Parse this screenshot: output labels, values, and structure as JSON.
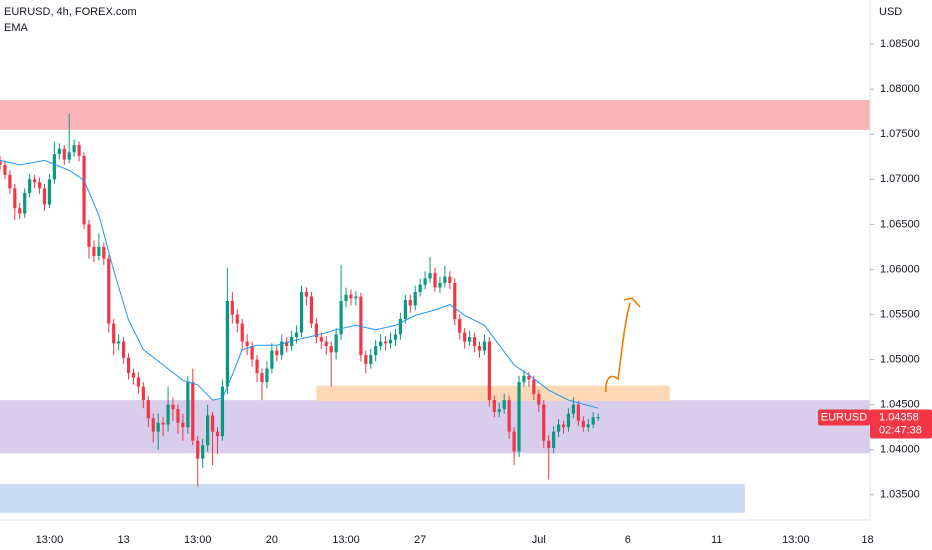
{
  "chart_data": {
    "type": "candlestick",
    "title": "EURUSD, 4h, FOREX.com",
    "indicator": "EMA",
    "currency": "USD",
    "symbol": "EURUSD",
    "last_price": 1.04358,
    "countdown": "02:47:38",
    "up_color": "#089981",
    "down_color": "#f23645",
    "ema_color": "#2196f3",
    "ylim": [
      1.0322,
      1.0899
    ],
    "xlim": [
      0,
      176
    ],
    "grid": false,
    "yticks": [
      {
        "value": 1.085,
        "label": "1.08500"
      },
      {
        "value": 1.08,
        "label": "1.08000"
      },
      {
        "value": 1.075,
        "label": "1.07500"
      },
      {
        "value": 1.07,
        "label": "1.07000"
      },
      {
        "value": 1.065,
        "label": "1.06500"
      },
      {
        "value": 1.06,
        "label": "1.06000"
      },
      {
        "value": 1.055,
        "label": "1.05500"
      },
      {
        "value": 1.05,
        "label": "1.05000"
      },
      {
        "value": 1.045,
        "label": "1.04500"
      },
      {
        "value": 1.04,
        "label": "1.04000"
      },
      {
        "value": 1.035,
        "label": "1.03500"
      }
    ],
    "xticks": [
      {
        "value": 10,
        "label": "13:00"
      },
      {
        "value": 25,
        "label": "13"
      },
      {
        "value": 40,
        "label": "13:00"
      },
      {
        "value": 55,
        "label": "20"
      },
      {
        "value": 70,
        "label": "13:00"
      },
      {
        "value": 85,
        "label": "27"
      },
      {
        "value": 109,
        "label": "Jul"
      },
      {
        "value": 127,
        "label": "6"
      },
      {
        "value": 145,
        "label": "11"
      },
      {
        "value": 161,
        "label": "13:00"
      },
      {
        "value": 175.5,
        "label": "18"
      }
    ],
    "zones": [
      {
        "top": 1.0788,
        "bottom": 1.0755,
        "x0": 0,
        "x1": 176,
        "color": "#fbb4b8"
      },
      {
        "top": 1.0455,
        "bottom": 1.0396,
        "x0": 0,
        "x1": 176,
        "color": "#d9cdec"
      },
      {
        "top": 1.0471,
        "bottom": 1.0454,
        "x0": 64,
        "x1": 135.5,
        "color": "#fcd8b6"
      },
      {
        "top": 1.0362,
        "bottom": 1.033,
        "x0": 0,
        "x1": 150.7,
        "color": "#c8dcf6"
      }
    ],
    "ema": {
      "x": [
        0,
        4,
        9,
        14,
        17,
        20,
        23,
        26,
        29,
        33,
        37,
        40,
        43,
        45,
        47,
        49,
        52,
        56,
        60,
        64,
        68,
        72,
        76,
        80,
        84,
        88,
        91,
        94,
        98,
        101,
        104,
        107,
        111,
        115,
        121
      ],
      "values": [
        1.0721,
        1.0716,
        1.0721,
        1.071,
        1.0699,
        1.066,
        1.0599,
        1.0544,
        1.0511,
        1.0494,
        1.0477,
        1.0472,
        1.0455,
        1.0457,
        1.0483,
        1.0511,
        1.0516,
        1.0516,
        1.0522,
        1.0527,
        1.0533,
        1.0538,
        1.0533,
        1.0538,
        1.0549,
        1.0555,
        1.0561,
        1.0549,
        1.0538,
        1.0516,
        1.0494,
        1.0483,
        1.0466,
        1.0455,
        1.0446
      ]
    },
    "ohlc": [
      [
        1.072,
        1.0726,
        1.071,
        1.0716
      ],
      [
        1.0716,
        1.0721,
        1.07,
        1.0705
      ],
      [
        1.0705,
        1.071,
        1.0684,
        1.069
      ],
      [
        1.069,
        1.0695,
        1.0655,
        1.0668
      ],
      [
        1.0668,
        1.0674,
        1.0656,
        1.0662
      ],
      [
        1.0662,
        1.069,
        1.0657,
        1.0685
      ],
      [
        1.0685,
        1.0706,
        1.068,
        1.07
      ],
      [
        1.07,
        1.0705,
        1.069,
        1.0697
      ],
      [
        1.0697,
        1.0702,
        1.0684,
        1.069
      ],
      [
        1.069,
        1.0695,
        1.0665,
        1.0672
      ],
      [
        1.0672,
        1.0706,
        1.0668,
        1.07
      ],
      [
        1.07,
        1.0742,
        1.0695,
        1.0728
      ],
      [
        1.0728,
        1.074,
        1.0722,
        1.0734
      ],
      [
        1.0734,
        1.0738,
        1.0716,
        1.0722
      ],
      [
        1.0722,
        1.0773,
        1.0718,
        1.073
      ],
      [
        1.073,
        1.0744,
        1.0725,
        1.0738
      ],
      [
        1.0738,
        1.0742,
        1.072,
        1.0726
      ],
      [
        1.0726,
        1.073,
        1.0645,
        1.065
      ],
      [
        1.065,
        1.0655,
        1.0612,
        1.0625
      ],
      [
        1.0625,
        1.0632,
        1.0608,
        1.0615
      ],
      [
        1.0615,
        1.064,
        1.061,
        1.0625
      ],
      [
        1.0625,
        1.063,
        1.0605,
        1.0612
      ],
      [
        1.0612,
        1.0616,
        1.053,
        1.054
      ],
      [
        1.054,
        1.0545,
        1.0505,
        1.0518
      ],
      [
        1.0518,
        1.0528,
        1.051,
        1.052
      ],
      [
        1.052,
        1.0525,
        1.0495,
        1.0502
      ],
      [
        1.0502,
        1.0507,
        1.0478,
        1.0485
      ],
      [
        1.0485,
        1.049,
        1.0472,
        1.048
      ],
      [
        1.048,
        1.0486,
        1.0462,
        1.047
      ],
      [
        1.047,
        1.0475,
        1.0446,
        1.0455
      ],
      [
        1.0455,
        1.046,
        1.0425,
        1.0435
      ],
      [
        1.0435,
        1.044,
        1.0408,
        1.042
      ],
      [
        1.042,
        1.044,
        1.04,
        1.043
      ],
      [
        1.043,
        1.0436,
        1.0415,
        1.0428
      ],
      [
        1.0428,
        1.047,
        1.042,
        1.045
      ],
      [
        1.045,
        1.0458,
        1.0432,
        1.0445
      ],
      [
        1.0445,
        1.045,
        1.0418,
        1.043
      ],
      [
        1.043,
        1.044,
        1.041,
        1.0425
      ],
      [
        1.0425,
        1.0482,
        1.0418,
        1.0475
      ],
      [
        1.0475,
        1.049,
        1.0405,
        1.041
      ],
      [
        1.041,
        1.0415,
        1.0359,
        1.039
      ],
      [
        1.039,
        1.0412,
        1.038,
        1.0405
      ],
      [
        1.0405,
        1.045,
        1.0398,
        1.0438
      ],
      [
        1.0438,
        1.0442,
        1.0383,
        1.042
      ],
      [
        1.042,
        1.0425,
        1.0395,
        1.0415
      ],
      [
        1.0415,
        1.0478,
        1.041,
        1.047
      ],
      [
        1.047,
        1.0602,
        1.0462,
        1.0565
      ],
      [
        1.0565,
        1.0575,
        1.054,
        1.055
      ],
      [
        1.055,
        1.0556,
        1.053,
        1.054
      ],
      [
        1.054,
        1.0545,
        1.051,
        1.052
      ],
      [
        1.052,
        1.0528,
        1.0505,
        1.0515
      ],
      [
        1.0515,
        1.052,
        1.0492,
        1.05
      ],
      [
        1.05,
        1.0505,
        1.0475,
        1.0485
      ],
      [
        1.0485,
        1.049,
        1.0455,
        1.0475
      ],
      [
        1.0475,
        1.0498,
        1.0468,
        1.049
      ],
      [
        1.049,
        1.0518,
        1.0485,
        1.051
      ],
      [
        1.051,
        1.0515,
        1.0498,
        1.0505
      ],
      [
        1.0505,
        1.0528,
        1.05,
        1.052
      ],
      [
        1.052,
        1.0525,
        1.0508,
        1.0515
      ],
      [
        1.0515,
        1.0532,
        1.051,
        1.0525
      ],
      [
        1.0525,
        1.0538,
        1.0518,
        1.053
      ],
      [
        1.053,
        1.0582,
        1.0525,
        1.0575
      ],
      [
        1.0575,
        1.058,
        1.056,
        1.057
      ],
      [
        1.057,
        1.0575,
        1.0535,
        1.054
      ],
      [
        1.054,
        1.0546,
        1.0518,
        1.0525
      ],
      [
        1.0525,
        1.053,
        1.0512,
        1.052
      ],
      [
        1.052,
        1.0526,
        1.0505,
        1.0515
      ],
      [
        1.0515,
        1.052,
        1.047,
        1.0508
      ],
      [
        1.0508,
        1.0535,
        1.05,
        1.0528
      ],
      [
        1.0528,
        1.0605,
        1.0522,
        1.0565
      ],
      [
        1.0565,
        1.058,
        1.0558,
        1.0572
      ],
      [
        1.0572,
        1.0578,
        1.056,
        1.0568
      ],
      [
        1.0568,
        1.0576,
        1.056,
        1.057
      ],
      [
        1.057,
        1.0574,
        1.0498,
        1.0505
      ],
      [
        1.0505,
        1.051,
        1.0485,
        1.0495
      ],
      [
        1.0495,
        1.0512,
        1.049,
        1.0505
      ],
      [
        1.0505,
        1.0522,
        1.0498,
        1.0515
      ],
      [
        1.0515,
        1.0528,
        1.051,
        1.052
      ],
      [
        1.052,
        1.0526,
        1.051,
        1.0518
      ],
      [
        1.0518,
        1.053,
        1.0512,
        1.0522
      ],
      [
        1.0522,
        1.0534,
        1.0515,
        1.0528
      ],
      [
        1.0528,
        1.0552,
        1.0522,
        1.0545
      ],
      [
        1.0545,
        1.0572,
        1.054,
        1.0566
      ],
      [
        1.0566,
        1.0572,
        1.0552,
        1.056
      ],
      [
        1.056,
        1.0582,
        1.0555,
        1.0575
      ],
      [
        1.0575,
        1.059,
        1.057,
        1.0583
      ],
      [
        1.0583,
        1.0598,
        1.0578,
        1.059
      ],
      [
        1.059,
        1.0614,
        1.0585,
        1.0596
      ],
      [
        1.0596,
        1.0602,
        1.0575,
        1.058
      ],
      [
        1.058,
        1.0592,
        1.0574,
        1.0585
      ],
      [
        1.0585,
        1.0604,
        1.058,
        1.0592
      ],
      [
        1.0592,
        1.0598,
        1.0578,
        1.0585
      ],
      [
        1.0585,
        1.059,
        1.0538,
        1.0545
      ],
      [
        1.0545,
        1.055,
        1.0522,
        1.053
      ],
      [
        1.053,
        1.0535,
        1.0512,
        1.052
      ],
      [
        1.052,
        1.0532,
        1.0515,
        1.0525
      ],
      [
        1.0525,
        1.053,
        1.0508,
        1.0515
      ],
      [
        1.0515,
        1.052,
        1.0502,
        1.051
      ],
      [
        1.051,
        1.0528,
        1.0505,
        1.052
      ],
      [
        1.052,
        1.0525,
        1.0448,
        1.0455
      ],
      [
        1.0455,
        1.046,
        1.0436,
        1.0442
      ],
      [
        1.0442,
        1.0452,
        1.0436,
        1.0445
      ],
      [
        1.0445,
        1.0462,
        1.044,
        1.0455
      ],
      [
        1.0455,
        1.046,
        1.0412,
        1.042
      ],
      [
        1.042,
        1.0425,
        1.0383,
        1.0398
      ],
      [
        1.0398,
        1.0482,
        1.0392,
        1.0475
      ],
      [
        1.0475,
        1.0488,
        1.047,
        1.0482
      ],
      [
        1.0482,
        1.0486,
        1.047,
        1.0478
      ],
      [
        1.0478,
        1.0482,
        1.0455,
        1.0462
      ],
      [
        1.0462,
        1.0466,
        1.0442,
        1.045
      ],
      [
        1.045,
        1.0455,
        1.0402,
        1.041
      ],
      [
        1.041,
        1.0416,
        1.0367,
        1.0402
      ],
      [
        1.0402,
        1.0426,
        1.0396,
        1.042
      ],
      [
        1.042,
        1.0434,
        1.0414,
        1.0428
      ],
      [
        1.0428,
        1.0432,
        1.0418,
        1.0425
      ],
      [
        1.0425,
        1.0446,
        1.042,
        1.044
      ],
      [
        1.044,
        1.0458,
        1.0435,
        1.045
      ],
      [
        1.045,
        1.0454,
        1.0426,
        1.0432
      ],
      [
        1.0432,
        1.0437,
        1.042,
        1.0425
      ],
      [
        1.0425,
        1.0434,
        1.042,
        1.0428
      ],
      [
        1.0428,
        1.0442,
        1.0424,
        1.0436
      ],
      [
        1.0436,
        1.044,
        1.0432,
        1.0436
      ]
    ]
  }
}
